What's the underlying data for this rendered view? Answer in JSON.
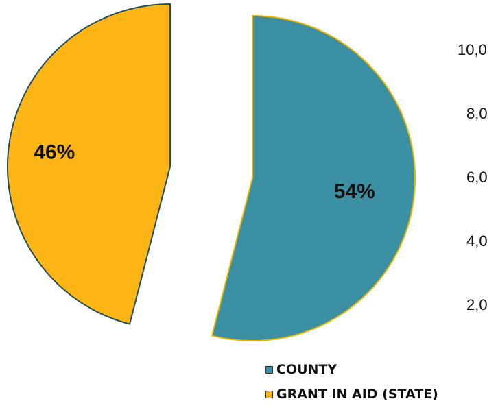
{
  "chart_data": [
    {
      "type": "pie",
      "categories": [
        "COUNTY",
        "GRANT IN AID (STATE)"
      ],
      "values": [
        54,
        46
      ],
      "data_labels": [
        "54%",
        "46%"
      ],
      "colors": [
        "#3A8FA3",
        "#FDB515"
      ],
      "outline_colors": [
        "#E8B400",
        "#1F4E5F"
      ],
      "exploded": true,
      "legend_position": "bottom",
      "title": ""
    },
    {
      "type": "bar",
      "partially_visible": true,
      "tick_labels": [
        "10,0",
        "8,0",
        "6,0",
        "4,0",
        "2,0"
      ]
    }
  ],
  "legend": {
    "items": [
      {
        "label": "COUNTY",
        "color": "#3A8FA3"
      },
      {
        "label": "GRANT IN AID (STATE)",
        "color": "#FDB515"
      }
    ]
  }
}
